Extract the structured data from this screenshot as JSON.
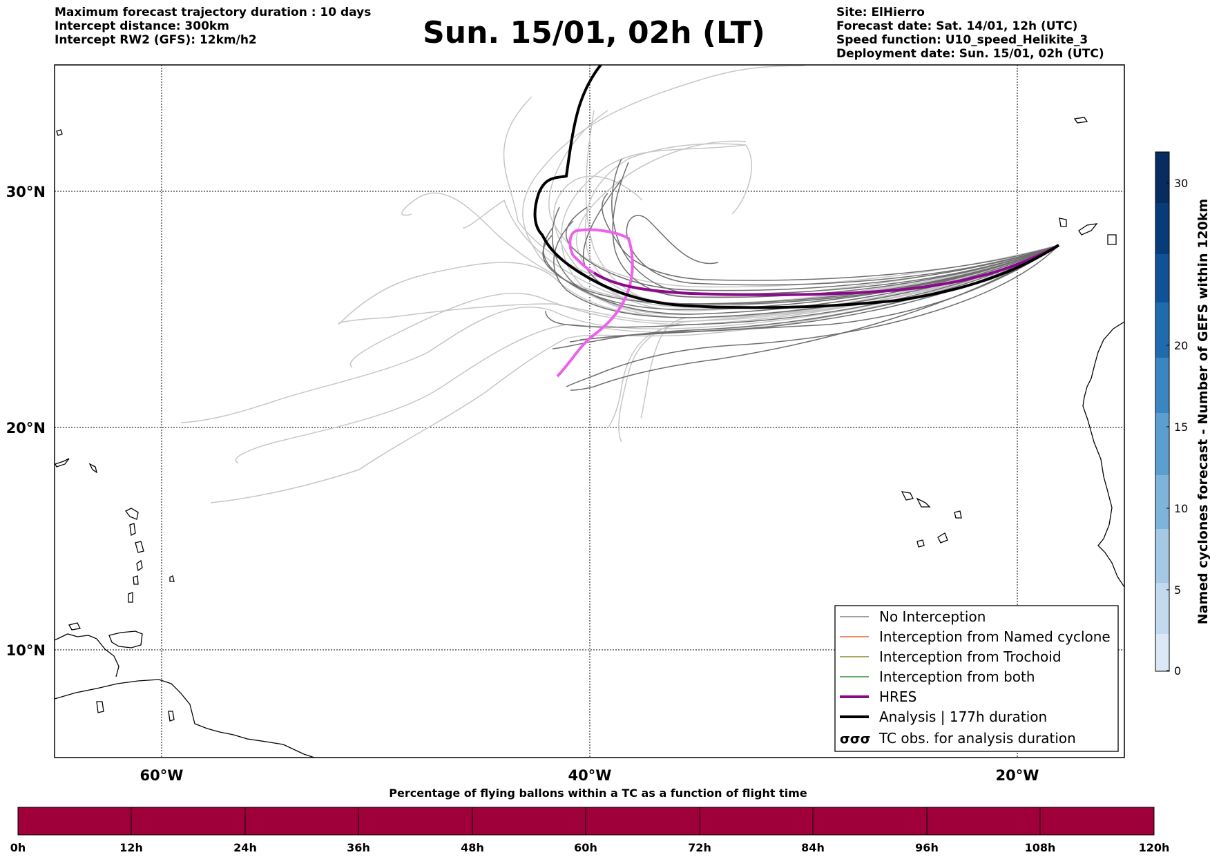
{
  "header": {
    "left": [
      "Maximum forecast trajectory duration : 10 days",
      "Intercept distance: 300km",
      "Intercept RW2 (GFS):  12km/h2"
    ],
    "title": "Sun. 15/01, 02h (LT)",
    "right": [
      "Site: ElHierro",
      "Forecast date: Sat. 14/01, 12h (UTC)",
      "Speed function: U10_speed_Helikite_3",
      "Deployment date: Sun. 15/01, 02h (UTC)"
    ]
  },
  "map": {
    "lon_range": [
      -65,
      -15
    ],
    "lat_range": [
      5,
      34.5
    ],
    "lat_labels": [
      "10°N",
      "20°N",
      "30°N"
    ],
    "lon_labels": [
      "60°W",
      "40°W",
      "20°W"
    ],
    "grid": "dotted"
  },
  "legend": {
    "placement": "bottom-right",
    "items": [
      {
        "label": "No Interception",
        "color": "#808080",
        "style": "thin"
      },
      {
        "label": "Interception from Named cyclone",
        "color": "#e8602c",
        "style": "thin"
      },
      {
        "label": "Interception from Trochoid",
        "color": "#8a8a2a",
        "style": "thin"
      },
      {
        "label": "Interception from both",
        "color": "#2f8f2f",
        "style": "thin"
      },
      {
        "label": "HRES",
        "color": "#8b0a8b",
        "style": "thick"
      },
      {
        "label": "Analysis | 177h duration",
        "color": "#000000",
        "style": "thick"
      },
      {
        "label": "TC obs. for analysis duration",
        "color": "#000000",
        "style": "symbol"
      }
    ]
  },
  "right_colorbar": {
    "label": "Named cyclones forecast - Number of GEFS within 120km",
    "ticks": [
      "0",
      "5",
      "10",
      "15",
      "20",
      "30"
    ],
    "colors": [
      "#dbe8f5",
      "#c3d9ee",
      "#a5c9e4",
      "#7db4da",
      "#5a9fd0",
      "#3a86c3",
      "#1f6bb0",
      "#0f5299",
      "#083b7a",
      "#062c60"
    ]
  },
  "bottom_colorbar": {
    "title": "Percentage of flying ballons within a TC as a function of flight time",
    "color": "#a0003a",
    "ticks": [
      "0h",
      "12h",
      "24h",
      "36h",
      "48h",
      "60h",
      "72h",
      "84h",
      "96h",
      "108h",
      "120h"
    ]
  }
}
